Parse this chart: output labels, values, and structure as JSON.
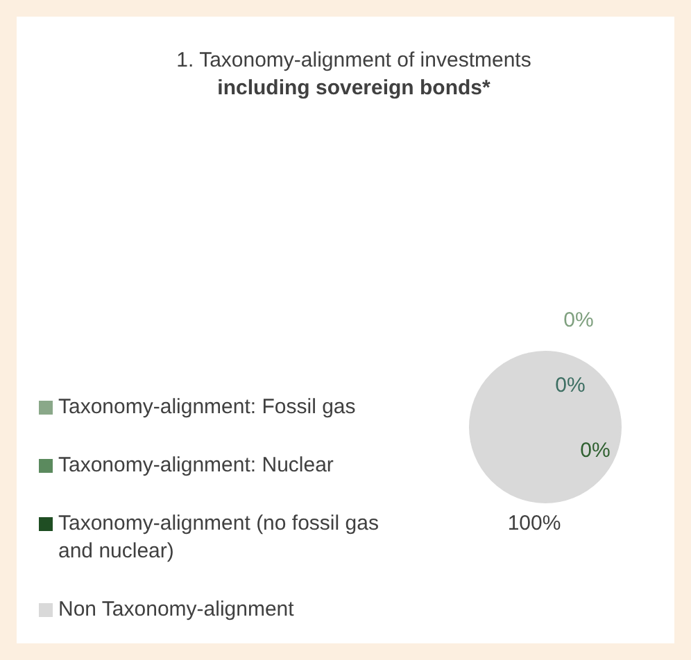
{
  "chart_data": {
    "type": "pie",
    "title": "1. Taxonomy-alignment of investments",
    "subtitle": "including sovereign bonds*",
    "categories": [
      "Taxonomy-alignment: Fossil gas",
      "Taxonomy-alignment: Nuclear",
      "Taxonomy-alignment (no fossil gas and nuclear)",
      "Non Taxonomy-alignment"
    ],
    "values": [
      0,
      0,
      0,
      100
    ],
    "colors": [
      "#8aa889",
      "#5b8a5e",
      "#1f4e23",
      "#d9d9d9"
    ],
    "value_labels": [
      "0%",
      "0%",
      "0%",
      "100%"
    ],
    "legend": "left"
  }
}
